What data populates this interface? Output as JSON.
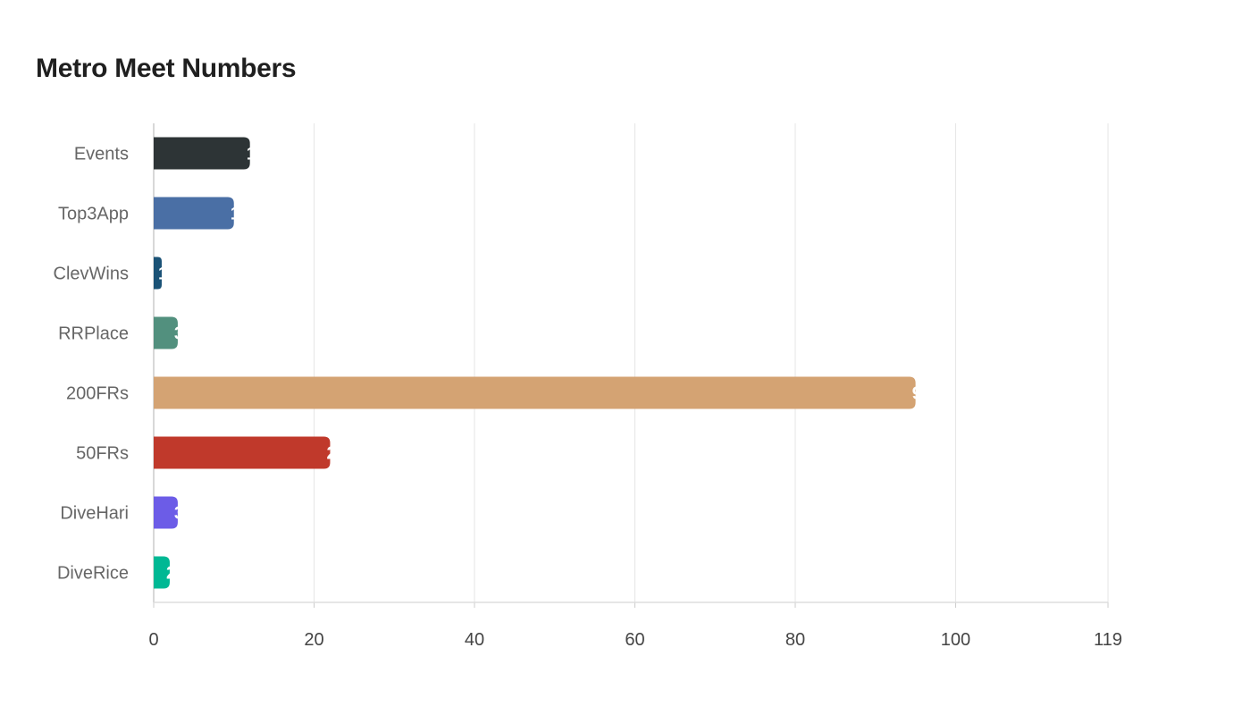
{
  "chart_data": {
    "type": "bar",
    "orientation": "horizontal",
    "title": "Metro Meet Numbers",
    "xlabel": "",
    "ylabel": "",
    "categories": [
      "Events",
      "Top3App",
      "ClevWins",
      "RRPlace",
      "200FRs",
      "50FRs",
      "DiveHari",
      "DiveRice"
    ],
    "values": [
      12,
      10,
      1,
      3,
      95,
      22,
      3,
      2
    ],
    "colors": [
      "#2d3436",
      "#4a6fa5",
      "#1a5276",
      "#52907e",
      "#d4a373",
      "#c0392b",
      "#6c5ce7",
      "#00b894"
    ],
    "xlim": [
      0,
      119
    ],
    "x_ticks": [
      0,
      20,
      40,
      60,
      80,
      100,
      119
    ],
    "grid": true,
    "legend": "none"
  }
}
